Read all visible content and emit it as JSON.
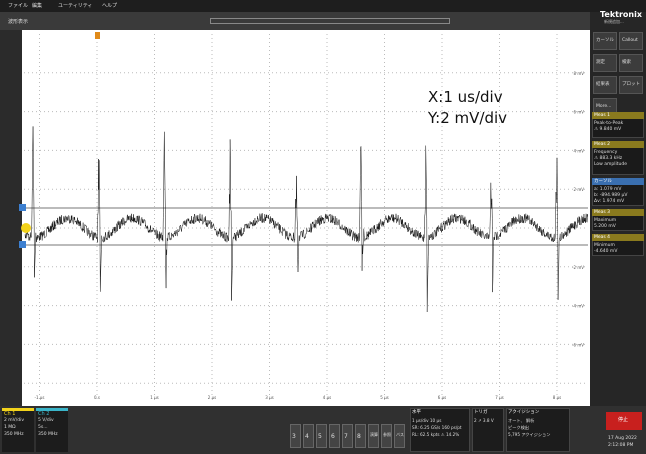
{
  "menu": [
    "ファイル",
    "編集",
    "ユーティリティ",
    "ヘルプ"
  ],
  "brand": "Tektronix",
  "brand_sub": "新規追加...",
  "window_title": "波形表示",
  "annotation": [
    "X:1 us/div",
    "Y:2 mV/div"
  ],
  "y_axis_labels": [
    "8 mV",
    "6 mV",
    "4 mV",
    "2 mV",
    "-2 mV",
    "-4 mV",
    "-6 mV"
  ],
  "x_axis_labels": [
    "-1 μs",
    "0 s",
    "1 μs",
    "2 μs",
    "3 μs",
    "4 μs",
    "5 μs",
    "6 μs",
    "7 μs",
    "8 μs",
    "9 μs"
  ],
  "side_buttons": [
    "カーソル",
    "Callout",
    "測定",
    "検索",
    "結果表",
    "プロット",
    "More..."
  ],
  "measurements": [
    {
      "title": "Meas 1",
      "lines": [
        "Peak-to-Peak",
        "⚠ 9.840 mV"
      ]
    },
    {
      "title": "Meas 2",
      "lines": [
        "Frequency",
        "⚠ 883.3 kHz",
        "Low amplitude"
      ]
    },
    {
      "title": "カーソル",
      "lines": [
        "a: 1.079 mV",
        "b: -894.989 μV",
        "Δv: 1.974 mV"
      ]
    },
    {
      "title": "Meas 3",
      "lines": [
        "Maximum",
        "5.200 mV"
      ]
    },
    {
      "title": "Meas 4",
      "lines": [
        "Minimum",
        "-4.640 mV"
      ]
    }
  ],
  "channels": [
    {
      "name": "Ch 1",
      "lines": [
        "2 mV/div",
        "1 MΩ",
        "350 MHz"
      ]
    },
    {
      "name": "Ch 2",
      "lines": [
        "5 V/div",
        "5s...",
        "350 MHz"
      ]
    }
  ],
  "buttons": [
    "3",
    "4",
    "5",
    "6",
    "7",
    "8",
    "演算",
    "参照",
    "バス"
  ],
  "horizontal": {
    "title": "水平",
    "lines": [
      "1 μs/div  10 μs",
      "SR: 6.25 GS/s  160 ps/pt",
      "RL: 62.5 kpts  ⚠ 14.2%"
    ]
  },
  "trigger": {
    "title": "トリガ",
    "lines": [
      "2  ↗  3.8 V"
    ]
  },
  "acquisition": {
    "title": "アクイジション",
    "lines": [
      "オート、  解析",
      "ピーク検出",
      "5,795 アクイジション"
    ]
  },
  "stop": "停止",
  "datetime": [
    "17 Aug 2022",
    "2:12:08 PM"
  ]
}
